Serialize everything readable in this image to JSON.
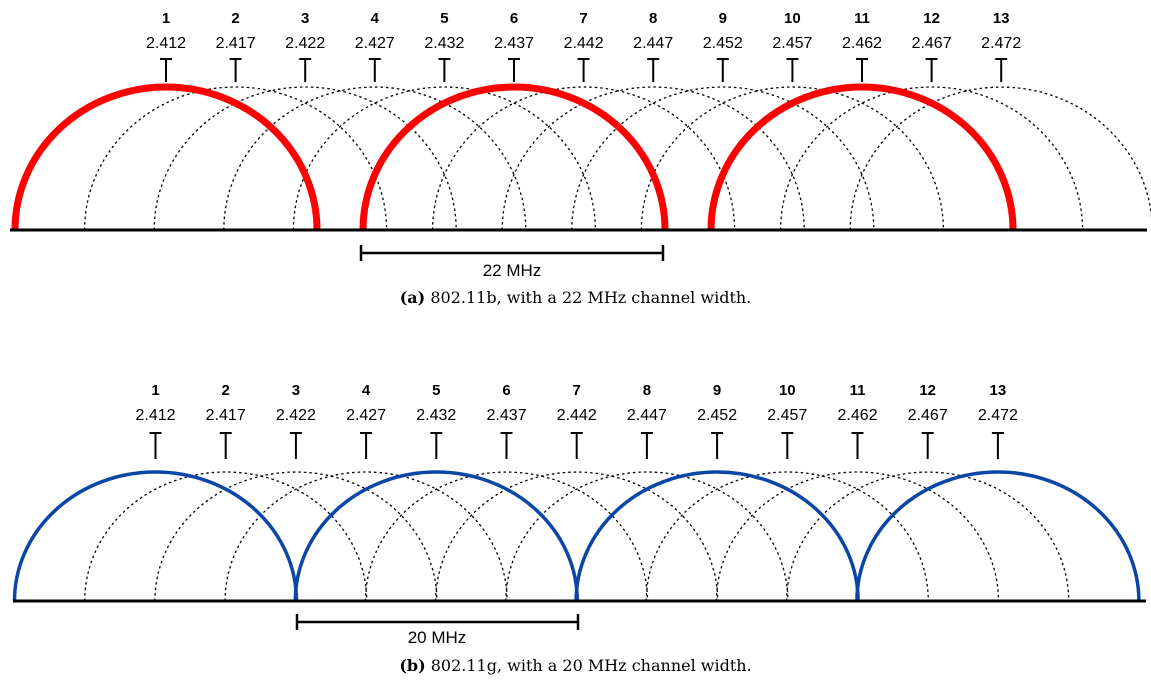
{
  "figure_a": {
    "channels": [
      {
        "num": "1",
        "freq": "2.412"
      },
      {
        "num": "2",
        "freq": "2.417"
      },
      {
        "num": "3",
        "freq": "2.422"
      },
      {
        "num": "4",
        "freq": "2.427"
      },
      {
        "num": "5",
        "freq": "2.432"
      },
      {
        "num": "6",
        "freq": "2.437"
      },
      {
        "num": "7",
        "freq": "2.442"
      },
      {
        "num": "8",
        "freq": "2.447"
      },
      {
        "num": "9",
        "freq": "2.452"
      },
      {
        "num": "10",
        "freq": "2.457"
      },
      {
        "num": "11",
        "freq": "2.462"
      },
      {
        "num": "12",
        "freq": "2.467"
      },
      {
        "num": "13",
        "freq": "2.472"
      }
    ],
    "highlighted_channels": [
      1,
      6,
      11
    ],
    "highlight_color": "#ff0000",
    "width_label": "22 MHz",
    "caption_tag": "(a)",
    "caption_text": "802.11b, with a 22 MHz channel width."
  },
  "figure_b": {
    "channels": [
      {
        "num": "1",
        "freq": "2.412"
      },
      {
        "num": "2",
        "freq": "2.417"
      },
      {
        "num": "3",
        "freq": "2.422"
      },
      {
        "num": "4",
        "freq": "2.427"
      },
      {
        "num": "5",
        "freq": "2.432"
      },
      {
        "num": "6",
        "freq": "2.437"
      },
      {
        "num": "7",
        "freq": "2.442"
      },
      {
        "num": "8",
        "freq": "2.447"
      },
      {
        "num": "9",
        "freq": "2.452"
      },
      {
        "num": "10",
        "freq": "2.457"
      },
      {
        "num": "11",
        "freq": "2.462"
      },
      {
        "num": "12",
        "freq": "2.467"
      },
      {
        "num": "13",
        "freq": "2.472"
      }
    ],
    "highlighted_channels": [
      1,
      5,
      9,
      13
    ],
    "highlight_color": "#0a46a5",
    "width_label": "20 MHz",
    "caption_tag": "(b)",
    "caption_text": "802.11g, with a 20 MHz channel width."
  }
}
